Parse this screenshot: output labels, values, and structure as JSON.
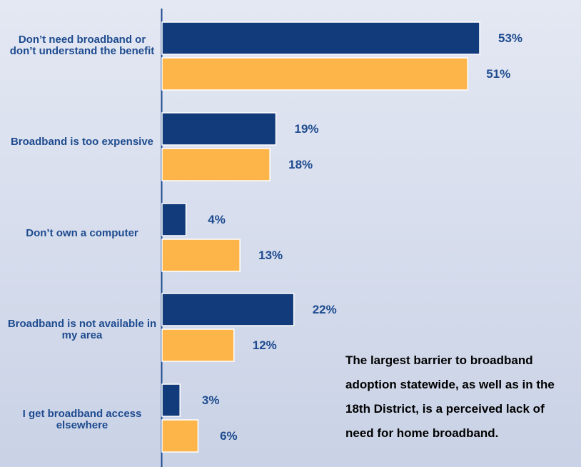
{
  "colors": {
    "series_1": "#123b7c",
    "series_2": "#fdb448",
    "label_text": "#1e4b8f",
    "axis": "#1e4b8f"
  },
  "chart_data": {
    "type": "bar",
    "orientation": "horizontal",
    "categories": [
      "Don’t need broadband or don’t understand the benefit",
      "Broadband is too expensive",
      "Don’t own a computer",
      "Broadband is not available in my area",
      "I get broadband access elsewhere"
    ],
    "series": [
      {
        "values": [
          53,
          19,
          4,
          22,
          3
        ],
        "data_labels": [
          "53%",
          "19%",
          "4%",
          "22%",
          "3%"
        ]
      },
      {
        "values": [
          51,
          18,
          13,
          12,
          6
        ],
        "data_labels": [
          "51%",
          "18%",
          "13%",
          "12%",
          "6%"
        ]
      }
    ],
    "unit": "%",
    "grid": false,
    "legend": "none"
  },
  "annotation": {
    "lines": [
      "The largest barrier to broadband",
      "adoption statewide, as well as in the",
      "18th District, is a perceived lack of",
      "need for home broadband."
    ]
  }
}
